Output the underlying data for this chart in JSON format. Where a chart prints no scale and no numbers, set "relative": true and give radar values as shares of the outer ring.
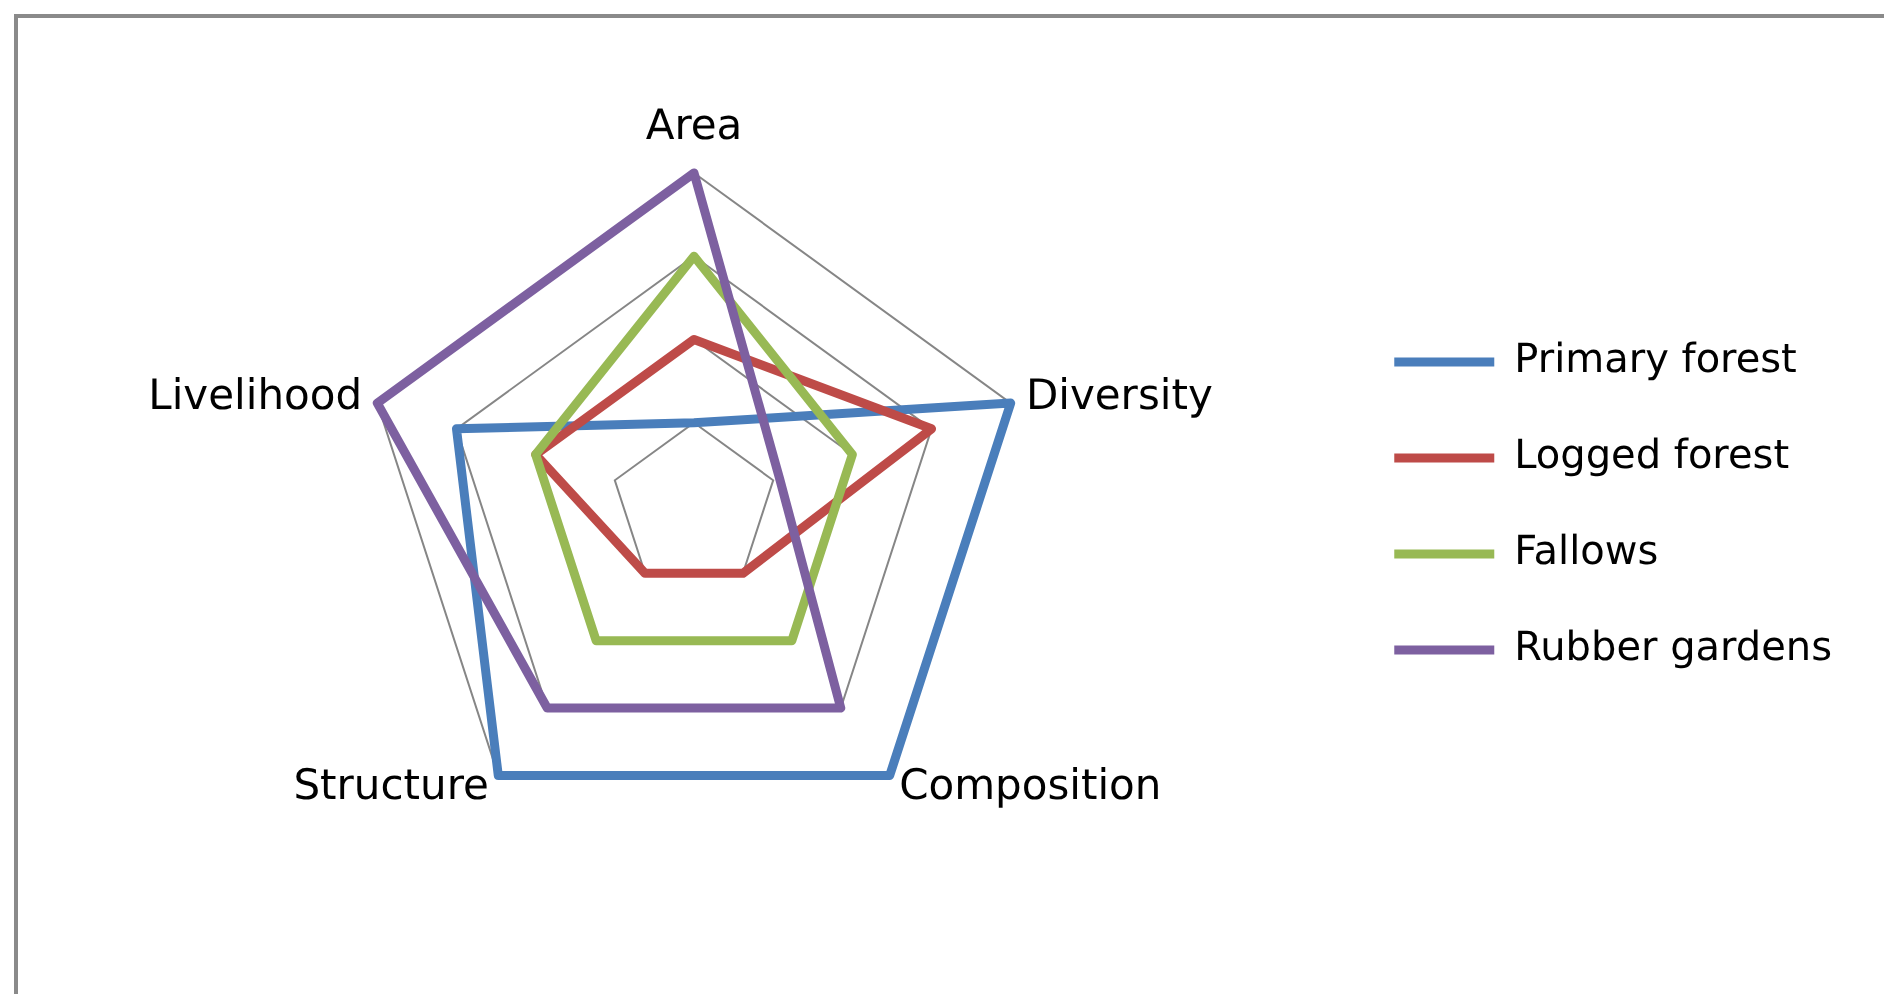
{
  "chart_data": {
    "type": "radar",
    "categories": [
      "Area",
      "Diversity",
      "Composition",
      "Structure",
      "Livelihood"
    ],
    "relative": true,
    "grid": true,
    "legend": "right",
    "series": [
      {
        "name": "Primary forest",
        "color": "#4a7ebb",
        "values": [
          0.25,
          1,
          1,
          1,
          0.75
        ]
      },
      {
        "name": "Logged forest",
        "color": "#be4b48",
        "values": [
          0.5,
          0.75,
          0.25,
          0.25,
          0.5
        ]
      },
      {
        "name": "Fallows",
        "color": "#98b954",
        "values": [
          0.75,
          0.5,
          0.5,
          0.5,
          0.5
        ]
      },
      {
        "name": "Rubber gardens",
        "color": "#7d60a0",
        "values": [
          1,
          0.27,
          0.75,
          0.75,
          1
        ]
      }
    ]
  }
}
